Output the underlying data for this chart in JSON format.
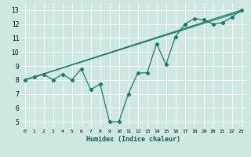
{
  "background_color": "#cce8e0",
  "grid_color": "#ffffff",
  "line_color": "#1a7a6e",
  "xlabel": "Humidex (Indice chaleur)",
  "xlim": [
    -0.5,
    23.5
  ],
  "ylim": [
    4.5,
    13.5
  ],
  "xticks": [
    0,
    1,
    2,
    3,
    4,
    5,
    6,
    7,
    8,
    9,
    10,
    11,
    12,
    13,
    14,
    15,
    16,
    17,
    18,
    19,
    20,
    21,
    22,
    23
  ],
  "yticks": [
    5,
    6,
    7,
    8,
    9,
    10,
    11,
    12,
    13
  ],
  "line1_x": [
    0,
    1,
    2,
    3,
    4,
    5,
    6,
    7,
    8,
    9,
    10,
    11,
    12,
    13,
    14,
    15,
    16,
    17,
    18,
    19,
    20,
    21,
    22,
    23
  ],
  "line1_y": [
    8.0,
    8.2,
    8.4,
    8.0,
    8.4,
    8.0,
    8.8,
    7.3,
    7.7,
    5.0,
    5.0,
    7.0,
    8.5,
    8.5,
    10.6,
    9.1,
    11.1,
    12.0,
    12.4,
    12.3,
    12.0,
    12.1,
    12.5,
    13.0
  ],
  "line2_x": [
    0,
    23
  ],
  "line2_y": [
    8.0,
    13.0
  ],
  "line3_x": [
    0,
    23
  ],
  "line3_y": [
    8.0,
    12.9
  ]
}
